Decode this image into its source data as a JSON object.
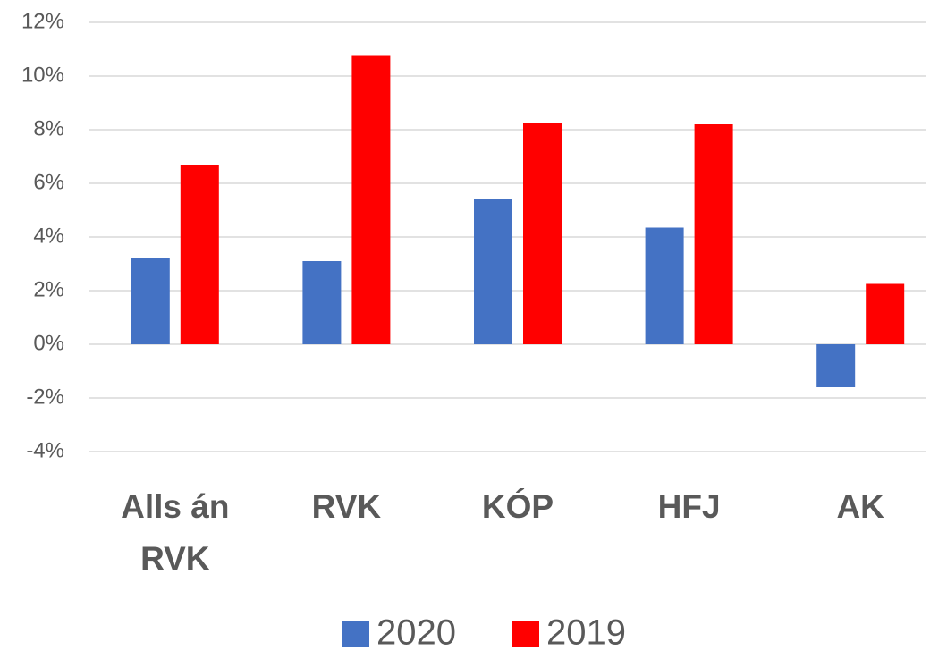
{
  "chart_data": {
    "type": "bar",
    "categories": [
      "Alls án RVK",
      "RVK",
      "KÓP",
      "HFJ",
      "AK"
    ],
    "series": [
      {
        "name": "2020",
        "color": "#4472c4",
        "values": [
          3.2,
          3.1,
          5.4,
          4.35,
          -1.6
        ]
      },
      {
        "name": "2019",
        "color": "#ff0000",
        "values": [
          6.7,
          10.75,
          8.25,
          8.2,
          2.25
        ]
      }
    ],
    "ylim": [
      -4,
      12
    ],
    "yticks": [
      {
        "value": -4,
        "label": "-4%"
      },
      {
        "value": -2,
        "label": "-2%"
      },
      {
        "value": 0,
        "label": "0%"
      },
      {
        "value": 2,
        "label": "2%"
      },
      {
        "value": 4,
        "label": "4%"
      },
      {
        "value": 6,
        "label": "6%"
      },
      {
        "value": 8,
        "label": "8%"
      },
      {
        "value": 10,
        "label": "10%"
      },
      {
        "value": 12,
        "label": "12%"
      }
    ],
    "grid": true,
    "legend": "bottom"
  }
}
